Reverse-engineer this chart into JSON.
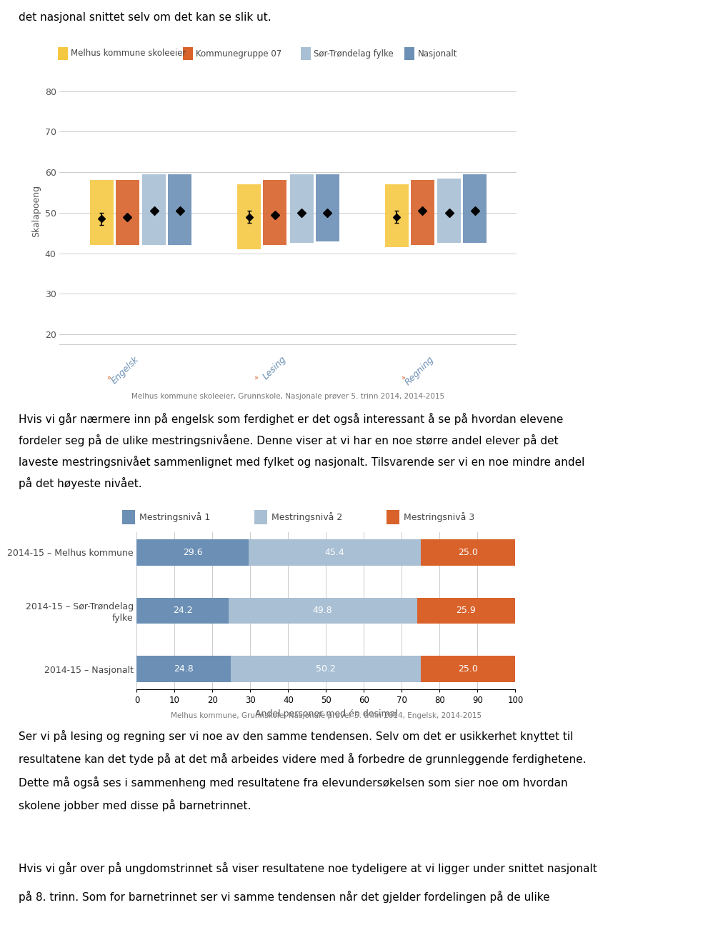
{
  "text_top": "det nasjonal snittet selv om det kan se slik ut.",
  "legend1_labels": [
    "Melhus kommune skoleeier",
    "Kommunegruppe 07",
    "Sør-Trøndelag fylke",
    "Nasjonalt"
  ],
  "legend1_colors": [
    "#f5c842",
    "#d9622b",
    "#a8bfd4",
    "#6b8fb5"
  ],
  "chart1_ylabel": "Skalapoeng",
  "chart1_yticks": [
    20,
    30,
    40,
    50,
    60,
    70,
    80
  ],
  "chart1_ylim": [
    17,
    84
  ],
  "chart1_categories": [
    "Engelsk",
    "Lesing",
    "Regning"
  ],
  "chart1_caption": "Melhus kommune skoleeier, Grunnskole, Nasjonale prøver 5. trinn 2014, 2014-2015",
  "chart1_bars": {
    "Engelsk": {
      "bottoms": [
        42,
        42,
        42,
        42
      ],
      "tops": [
        58,
        58,
        59.5,
        59.5
      ],
      "means": [
        48.5,
        49,
        50.5,
        50.5
      ],
      "mean_errors": [
        1.5,
        0,
        0,
        0
      ]
    },
    "Lesing": {
      "bottoms": [
        41,
        42,
        42.5,
        43
      ],
      "tops": [
        57,
        58,
        59.5,
        59.5
      ],
      "means": [
        49,
        49.5,
        50,
        50
      ],
      "mean_errors": [
        1.5,
        0,
        0,
        0
      ]
    },
    "Regning": {
      "bottoms": [
        41.5,
        42,
        42.5,
        42.5
      ],
      "tops": [
        57,
        58,
        58.5,
        59.5
      ],
      "means": [
        49,
        50.5,
        50,
        50.5
      ],
      "mean_errors": [
        1.5,
        0,
        0,
        0
      ]
    }
  },
  "text_para1_lines": [
    "Hvis vi går nærmere inn på engelsk som ferdighet er det også interessant å se på hvordan elevene",
    "fordeler seg på de ulike mestringsnivåene. Denne viser at vi har en noe større andel elever på det",
    "laveste mestringsnivået sammenlignet med fylket og nasjonalt. Tilsvarende ser vi en noe mindre andel",
    "på det høyeste nivået."
  ],
  "legend2_labels": [
    "Mestringsnivå 1",
    "Mestringsnivå 2",
    "Mestringsnivå 3"
  ],
  "legend2_colors": [
    "#6b8fb5",
    "#a8bfd4",
    "#d9622b"
  ],
  "chart2_rows": [
    "2014-15 – Melhus kommune",
    "2014-15 – Sør-Trøndelag\nfylke",
    "2014-15 – Nasjonalt"
  ],
  "chart2_data": [
    [
      29.6,
      45.4,
      25.0
    ],
    [
      24.2,
      49.8,
      25.9
    ],
    [
      24.8,
      50.2,
      25.0
    ]
  ],
  "chart2_xlabel": "Andel personer med én desimal",
  "chart2_xlim": [
    0,
    100
  ],
  "chart2_xticks": [
    0,
    10,
    20,
    30,
    40,
    50,
    60,
    70,
    80,
    90,
    100
  ],
  "chart2_caption": "Melhus kommune, Grunnskole, Nasjonale prøver 5. trinn 2014, Engelsk, 2014-2015",
  "text_para2_lines": [
    "Ser vi på lesing og regning ser vi noe av den samme tendensen. Selv om det er usikkerhet knyttet til",
    "resultatene kan det tyde på at det må arbeides videre med å forbedre de grunnleggende ferdighetene.",
    "Dette må også ses i sammenheng med resultatene fra elevundersøkelsen som sier noe om hvordan",
    "skolene jobber med disse på barnetrinnet."
  ],
  "text_para3_lines": [
    "Hvis vi går over på ungdomstrinnet så viser resultatene noe tydeligere at vi ligger under snittet nasjonalt",
    "på 8. trinn. Som for barnetrinnet ser vi samme tendensen når det gjelder fordelingen på de ulike"
  ]
}
